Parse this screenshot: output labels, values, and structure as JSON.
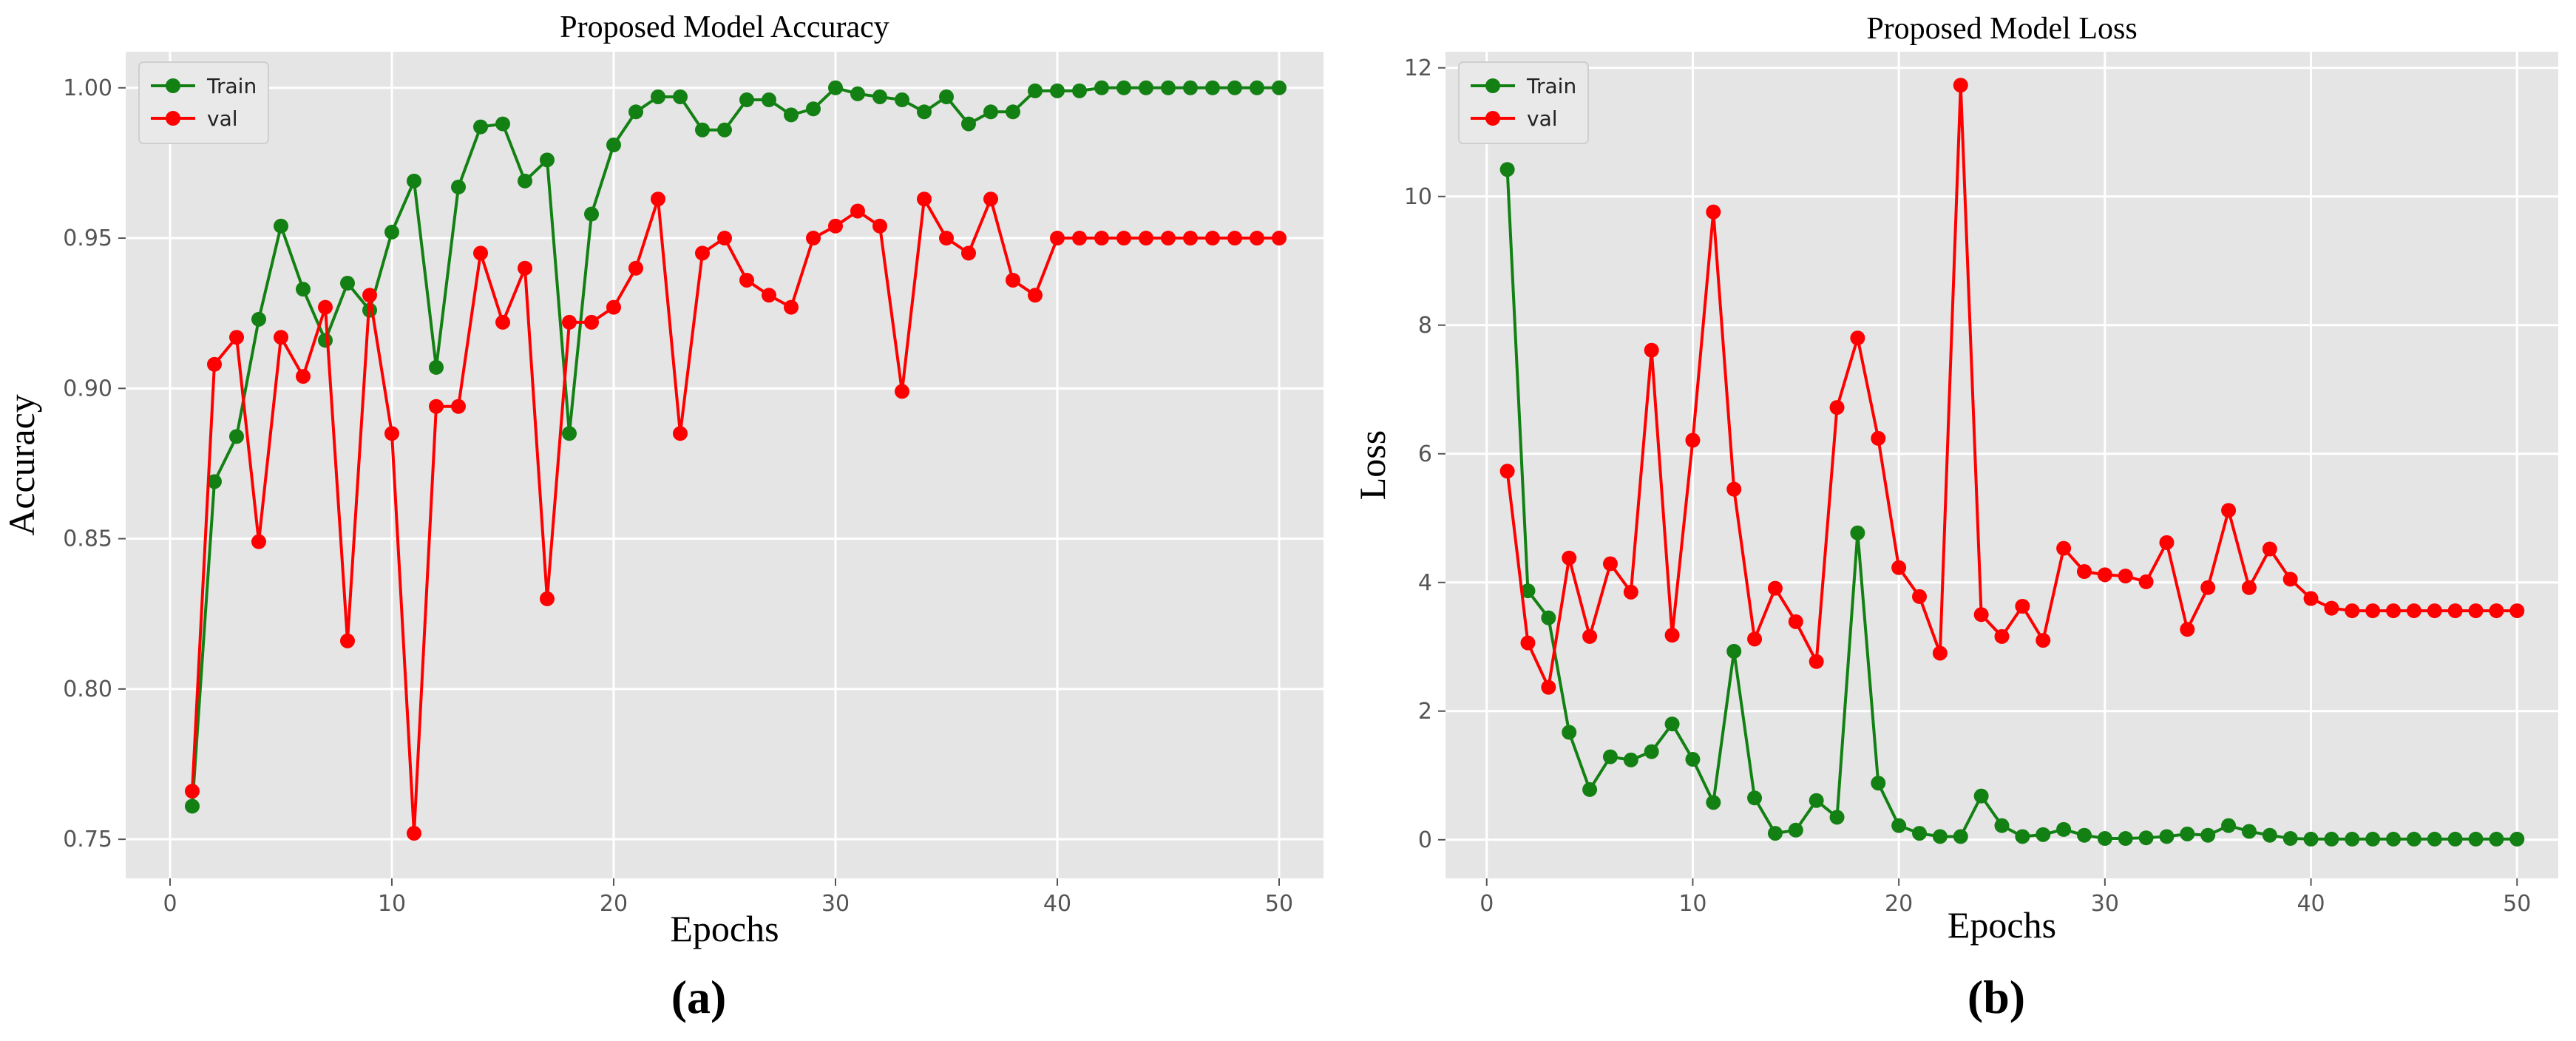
{
  "panels": [
    {
      "label": "(a)"
    },
    {
      "label": "(b)"
    }
  ],
  "chart_data": [
    {
      "type": "line",
      "title": "Proposed Model Accuracy",
      "xlabel": "Epochs",
      "ylabel": "Accuracy",
      "xlim": [
        -2,
        52
      ],
      "ylim": [
        0.737,
        1.012
      ],
      "xticks": [
        0,
        10,
        20,
        30,
        40,
        50
      ],
      "yticks": [
        0.75,
        0.8,
        0.85,
        0.9,
        0.95,
        1.0
      ],
      "ytick_labels": [
        "0.75",
        "0.80",
        "0.85",
        "0.90",
        "0.95",
        "1.00"
      ],
      "grid": true,
      "legend_position": "top-left",
      "x": [
        1,
        2,
        3,
        4,
        5,
        6,
        7,
        8,
        9,
        10,
        11,
        12,
        13,
        14,
        15,
        16,
        17,
        18,
        19,
        20,
        21,
        22,
        23,
        24,
        25,
        26,
        27,
        28,
        29,
        30,
        31,
        32,
        33,
        34,
        35,
        36,
        37,
        38,
        39,
        40,
        41,
        42,
        43,
        44,
        45,
        46,
        47,
        48,
        49,
        50
      ],
      "series": [
        {
          "name": "Train",
          "color": "#138013",
          "values": [
            0.761,
            0.869,
            0.884,
            0.923,
            0.954,
            0.933,
            0.916,
            0.935,
            0.926,
            0.952,
            0.969,
            0.907,
            0.967,
            0.987,
            0.988,
            0.969,
            0.976,
            0.885,
            0.958,
            0.981,
            0.992,
            0.997,
            0.997,
            0.986,
            0.986,
            0.996,
            0.996,
            0.991,
            0.993,
            1.0,
            0.998,
            0.997,
            0.996,
            0.992,
            0.997,
            0.988,
            0.992,
            0.992,
            0.999,
            0.999,
            0.999,
            1.0,
            1.0,
            1.0,
            1.0,
            1.0,
            1.0,
            1.0,
            1.0,
            1.0
          ]
        },
        {
          "name": "val",
          "color": "#ff0000",
          "values": [
            0.766,
            0.908,
            0.917,
            0.849,
            0.917,
            0.904,
            0.927,
            0.816,
            0.931,
            0.885,
            0.752,
            0.894,
            0.894,
            0.945,
            0.922,
            0.94,
            0.83,
            0.922,
            0.922,
            0.927,
            0.94,
            0.963,
            0.885,
            0.945,
            0.95,
            0.936,
            0.931,
            0.927,
            0.95,
            0.954,
            0.959,
            0.954,
            0.899,
            0.963,
            0.95,
            0.945,
            0.963,
            0.936,
            0.931,
            0.95,
            0.95,
            0.95,
            0.95,
            0.95,
            0.95,
            0.95,
            0.95,
            0.95,
            0.95,
            0.95
          ]
        }
      ]
    },
    {
      "type": "line",
      "title": "Proposed Model Loss",
      "xlabel": "Epochs",
      "ylabel": "Loss",
      "xlim": [
        -2,
        52
      ],
      "ylim": [
        -0.6,
        12.25
      ],
      "xticks": [
        0,
        10,
        20,
        30,
        40,
        50
      ],
      "yticks": [
        0,
        2,
        4,
        6,
        8,
        10,
        12
      ],
      "ytick_labels": [
        "0",
        "2",
        "4",
        "6",
        "8",
        "10",
        "12"
      ],
      "grid": true,
      "legend_position": "top-left",
      "x": [
        1,
        2,
        3,
        4,
        5,
        6,
        7,
        8,
        9,
        10,
        11,
        12,
        13,
        14,
        15,
        16,
        17,
        18,
        19,
        20,
        21,
        22,
        23,
        24,
        25,
        26,
        27,
        28,
        29,
        30,
        31,
        32,
        33,
        34,
        35,
        36,
        37,
        38,
        39,
        40,
        41,
        42,
        43,
        44,
        45,
        46,
        47,
        48,
        49,
        50
      ],
      "series": [
        {
          "name": "Train",
          "color": "#138013",
          "values": [
            10.42,
            3.87,
            3.45,
            1.67,
            0.78,
            1.29,
            1.24,
            1.37,
            1.8,
            1.25,
            0.58,
            2.93,
            0.65,
            0.1,
            0.15,
            0.61,
            0.35,
            4.77,
            0.88,
            0.22,
            0.1,
            0.05,
            0.05,
            0.68,
            0.22,
            0.05,
            0.08,
            0.16,
            0.07,
            0.02,
            0.02,
            0.03,
            0.05,
            0.09,
            0.07,
            0.22,
            0.13,
            0.07,
            0.02,
            0.01,
            0.01,
            0.01,
            0.01,
            0.01,
            0.01,
            0.01,
            0.01,
            0.01,
            0.01,
            0.01
          ]
        },
        {
          "name": "val",
          "color": "#ff0000",
          "values": [
            5.73,
            3.06,
            2.37,
            4.38,
            3.16,
            4.29,
            3.85,
            7.61,
            3.18,
            6.21,
            9.76,
            5.45,
            3.12,
            3.91,
            3.39,
            2.77,
            6.72,
            7.8,
            6.24,
            4.23,
            3.78,
            2.9,
            11.73,
            3.5,
            3.16,
            3.63,
            3.1,
            4.53,
            4.17,
            4.12,
            4.1,
            4.01,
            4.62,
            3.27,
            3.92,
            5.12,
            3.92,
            4.52,
            4.05,
            3.75,
            3.6,
            3.56,
            3.56,
            3.56,
            3.56,
            3.56,
            3.56,
            3.56,
            3.56,
            3.56
          ]
        }
      ]
    }
  ]
}
